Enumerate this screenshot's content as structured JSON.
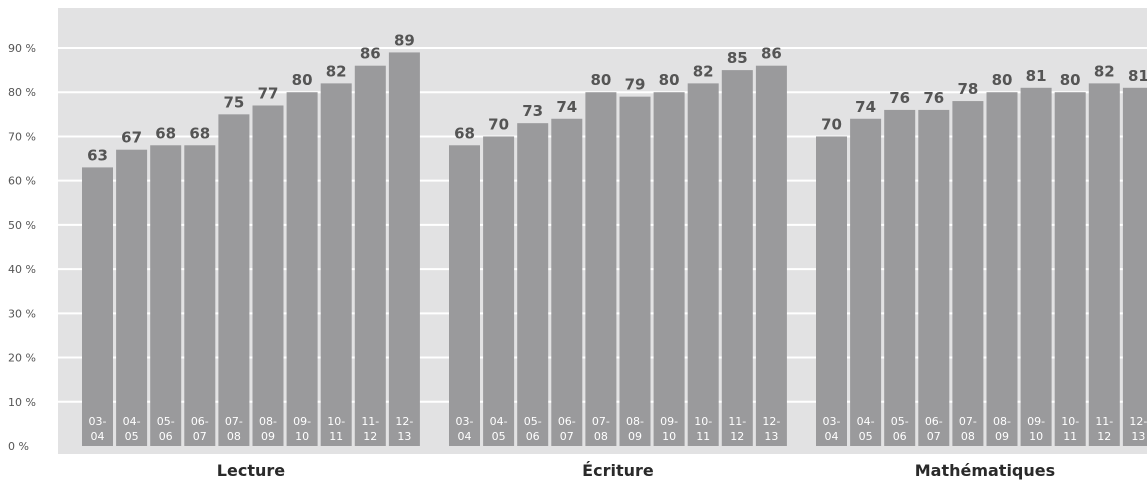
{
  "chart_data": {
    "type": "bar",
    "title": "",
    "xlabel": "",
    "ylabel": "",
    "ylim": [
      0,
      100
    ],
    "y_ticks": [
      {
        "value": 0,
        "label": "0 %"
      },
      {
        "value": 10,
        "label": "10 %"
      },
      {
        "value": 20,
        "label": "20 %"
      },
      {
        "value": 30,
        "label": "30 %"
      },
      {
        "value": 40,
        "label": "40 %"
      },
      {
        "value": 50,
        "label": "50 %"
      },
      {
        "value": 60,
        "label": "60 %"
      },
      {
        "value": 70,
        "label": "70 %"
      },
      {
        "value": 80,
        "label": "80 %"
      },
      {
        "value": 90,
        "label": "90 %"
      }
    ],
    "grid": true,
    "categories": [
      [
        "03-",
        "04"
      ],
      [
        "04-",
        "05"
      ],
      [
        "05-",
        "06"
      ],
      [
        "06-",
        "07"
      ],
      [
        "07-",
        "08"
      ],
      [
        "08-",
        "09"
      ],
      [
        "09-",
        "10"
      ],
      [
        "10-",
        "11"
      ],
      [
        "11-",
        "12"
      ],
      [
        "12-",
        "13"
      ]
    ],
    "groups": [
      {
        "name": "Lecture",
        "values": [
          63,
          67,
          68,
          68,
          75,
          77,
          80,
          82,
          86,
          89
        ]
      },
      {
        "name": "Écriture",
        "values": [
          68,
          70,
          73,
          74,
          80,
          79,
          80,
          82,
          85,
          86
        ]
      },
      {
        "name": "Mathématiques",
        "values": [
          70,
          74,
          76,
          76,
          78,
          80,
          81,
          80,
          82,
          81
        ]
      }
    ],
    "colors": {
      "plot_bg": "#e2e2e3",
      "bar": "#9a9a9c",
      "gridline": "#ffffff",
      "value_text": "#555555",
      "group_text": "#2a2a2a",
      "axis_text": "#555555",
      "category_text": "#ffffff"
    }
  }
}
